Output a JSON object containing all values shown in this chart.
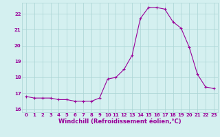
{
  "x": [
    0,
    1,
    2,
    3,
    4,
    5,
    6,
    7,
    8,
    9,
    10,
    11,
    12,
    13,
    14,
    15,
    16,
    17,
    18,
    19,
    20,
    21,
    22,
    23
  ],
  "y": [
    16.8,
    16.7,
    16.7,
    16.7,
    16.6,
    16.6,
    16.5,
    16.5,
    16.5,
    16.7,
    17.9,
    18.0,
    18.5,
    19.4,
    21.7,
    22.4,
    22.4,
    22.3,
    21.5,
    21.1,
    19.9,
    18.2,
    17.4,
    17.3
  ],
  "line_color": "#990099",
  "marker": "+",
  "markersize": 3,
  "linewidth": 0.8,
  "markeredgewidth": 0.8,
  "xlabel": "Windchill (Refroidissement éolien,°C)",
  "xlim": [
    -0.5,
    23.5
  ],
  "ylim": [
    15.8,
    22.7
  ],
  "yticks": [
    16,
    17,
    18,
    19,
    20,
    21,
    22
  ],
  "xticks": [
    0,
    1,
    2,
    3,
    4,
    5,
    6,
    7,
    8,
    9,
    10,
    11,
    12,
    13,
    14,
    15,
    16,
    17,
    18,
    19,
    20,
    21,
    22,
    23
  ],
  "bg_color": "#d4f0f0",
  "grid_color": "#aad4d4",
  "tick_label_color": "#990099",
  "xlabel_color": "#990099",
  "tick_fontsize": 5.0,
  "xlabel_fontsize": 6.0
}
